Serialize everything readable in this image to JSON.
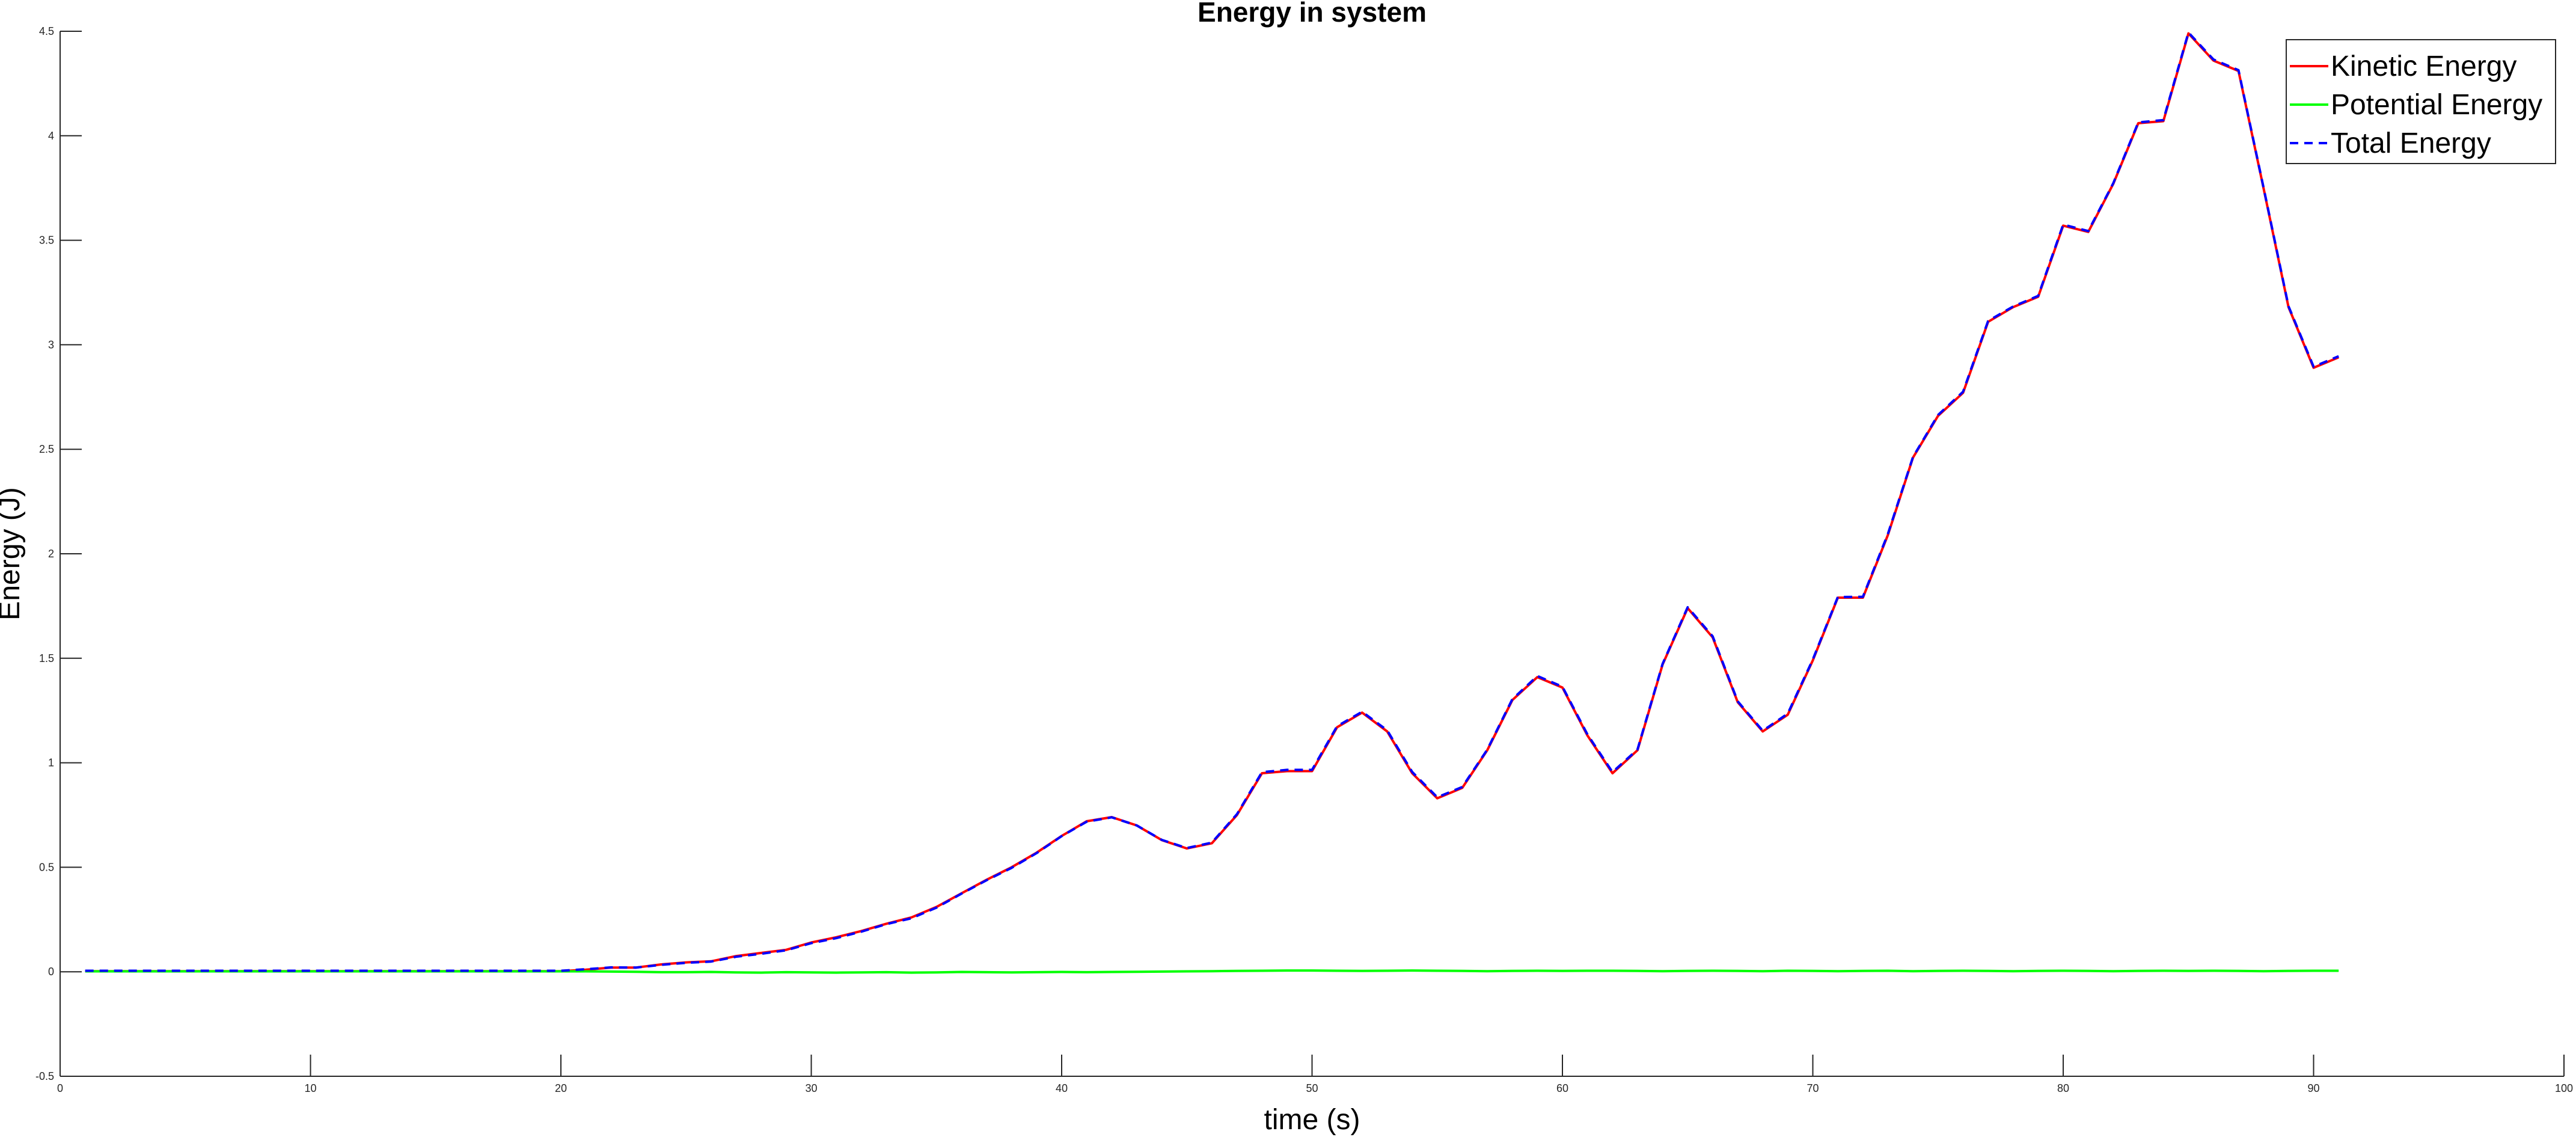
{
  "chart_data": {
    "type": "line",
    "title": "Energy in system",
    "xlabel": "time (s)",
    "ylabel": "Energy (J)",
    "xlim": [
      0,
      100
    ],
    "ylim": [
      -0.5,
      4.5
    ],
    "x_ticks": [
      0,
      10,
      20,
      30,
      40,
      50,
      60,
      70,
      80,
      90,
      100
    ],
    "y_ticks": [
      -0.5,
      0,
      0.5,
      1,
      1.5,
      2,
      2.5,
      3,
      3.5,
      4,
      4.5
    ],
    "x_tick_labels": [
      "0",
      "10",
      "20",
      "30",
      "40",
      "50",
      "60",
      "70",
      "80",
      "90",
      "100"
    ],
    "y_tick_labels": [
      "-0.5",
      "0",
      "0.5",
      "1",
      "1.5",
      "2",
      "2.5",
      "3",
      "3.5",
      "4",
      "4.5"
    ],
    "grid": false,
    "legend_position": "top-right",
    "x": [
      1,
      2,
      3,
      4,
      5,
      6,
      7,
      8,
      9,
      10,
      11,
      12,
      13,
      14,
      15,
      16,
      17,
      18,
      19,
      20,
      21,
      22,
      23,
      24,
      25,
      26,
      27,
      28,
      29,
      30,
      31,
      32,
      33,
      34,
      35,
      36,
      37,
      38,
      39,
      40,
      41,
      42,
      43,
      44,
      45,
      46,
      47,
      48,
      49,
      50,
      51,
      52,
      53,
      54,
      55,
      56,
      57,
      58,
      59,
      60,
      61,
      62,
      63,
      64,
      65,
      66,
      67,
      68,
      69,
      70,
      71,
      72,
      73,
      74,
      75,
      76,
      77,
      78,
      79,
      80,
      81,
      82,
      83,
      84,
      85,
      86,
      87,
      88,
      89,
      90,
      91
    ],
    "series": [
      {
        "name": "Kinetic Energy",
        "color": "#ff0000",
        "style": "solid",
        "values": [
          0.003,
          0.003,
          0.003,
          0.003,
          0.003,
          0.003,
          0.003,
          0.003,
          0.003,
          0.003,
          0.003,
          0.003,
          0.003,
          0.003,
          0.003,
          0.003,
          0.003,
          0.003,
          0.003,
          0.003,
          0.01,
          0.02,
          0.02,
          0.035,
          0.045,
          0.05,
          0.075,
          0.09,
          0.105,
          0.14,
          0.165,
          0.195,
          0.23,
          0.26,
          0.31,
          0.375,
          0.44,
          0.5,
          0.57,
          0.65,
          0.72,
          0.74,
          0.7,
          0.63,
          0.59,
          0.615,
          0.75,
          0.95,
          0.96,
          0.96,
          1.17,
          1.24,
          1.15,
          0.95,
          0.83,
          0.88,
          1.06,
          1.3,
          1.41,
          1.36,
          1.13,
          0.95,
          1.06,
          1.47,
          1.74,
          1.6,
          1.29,
          1.15,
          1.23,
          1.49,
          1.79,
          1.79,
          2.09,
          2.46,
          2.66,
          2.77,
          3.11,
          3.18,
          3.23,
          3.57,
          3.54,
          3.77,
          4.06,
          4.07,
          4.49,
          4.36,
          4.31,
          3.75,
          3.18,
          2.89,
          2.94
        ]
      },
      {
        "name": "Potential Energy",
        "color": "#00ff00",
        "style": "solid",
        "values": [
          0.002,
          0.002,
          0.002,
          0.002,
          0.002,
          0.002,
          0.002,
          0.002,
          0.002,
          0.002,
          0.002,
          0.002,
          0.002,
          0.002,
          0.002,
          0.002,
          0.002,
          0.002,
          0.002,
          0.002,
          0.002,
          0.001,
          0.0,
          -0.002,
          -0.002,
          -0.001,
          -0.003,
          -0.004,
          -0.002,
          -0.003,
          -0.004,
          -0.003,
          -0.002,
          -0.004,
          -0.003,
          -0.001,
          -0.002,
          -0.003,
          -0.002,
          -0.001,
          -0.002,
          -0.001,
          0.0,
          0.001,
          0.002,
          0.003,
          0.004,
          0.005,
          0.006,
          0.006,
          0.005,
          0.004,
          0.005,
          0.006,
          0.005,
          0.004,
          0.003,
          0.004,
          0.005,
          0.004,
          0.005,
          0.005,
          0.004,
          0.003,
          0.004,
          0.005,
          0.004,
          0.003,
          0.005,
          0.004,
          0.003,
          0.004,
          0.005,
          0.003,
          0.004,
          0.005,
          0.004,
          0.003,
          0.004,
          0.005,
          0.004,
          0.003,
          0.004,
          0.005,
          0.004,
          0.005,
          0.004,
          0.003,
          0.004,
          0.005,
          0.005
        ]
      },
      {
        "name": "Total Energy",
        "color": "#0000ff",
        "style": "dashed",
        "values": [
          0.005,
          0.005,
          0.005,
          0.005,
          0.005,
          0.005,
          0.005,
          0.005,
          0.005,
          0.005,
          0.005,
          0.005,
          0.005,
          0.005,
          0.005,
          0.005,
          0.005,
          0.005,
          0.005,
          0.005,
          0.012,
          0.021,
          0.02,
          0.033,
          0.043,
          0.049,
          0.072,
          0.086,
          0.103,
          0.137,
          0.161,
          0.192,
          0.228,
          0.256,
          0.307,
          0.374,
          0.438,
          0.497,
          0.568,
          0.649,
          0.718,
          0.739,
          0.7,
          0.631,
          0.592,
          0.618,
          0.754,
          0.955,
          0.966,
          0.966,
          1.175,
          1.244,
          1.155,
          0.956,
          0.835,
          0.884,
          1.063,
          1.304,
          1.415,
          1.364,
          1.135,
          0.955,
          1.064,
          1.473,
          1.744,
          1.605,
          1.294,
          1.153,
          1.235,
          1.494,
          1.793,
          1.794,
          2.095,
          2.463,
          2.664,
          2.775,
          3.114,
          3.183,
          3.234,
          3.575,
          3.544,
          3.773,
          4.064,
          4.075,
          4.494,
          4.365,
          4.314,
          3.753,
          3.184,
          2.895,
          2.945
        ]
      }
    ]
  }
}
